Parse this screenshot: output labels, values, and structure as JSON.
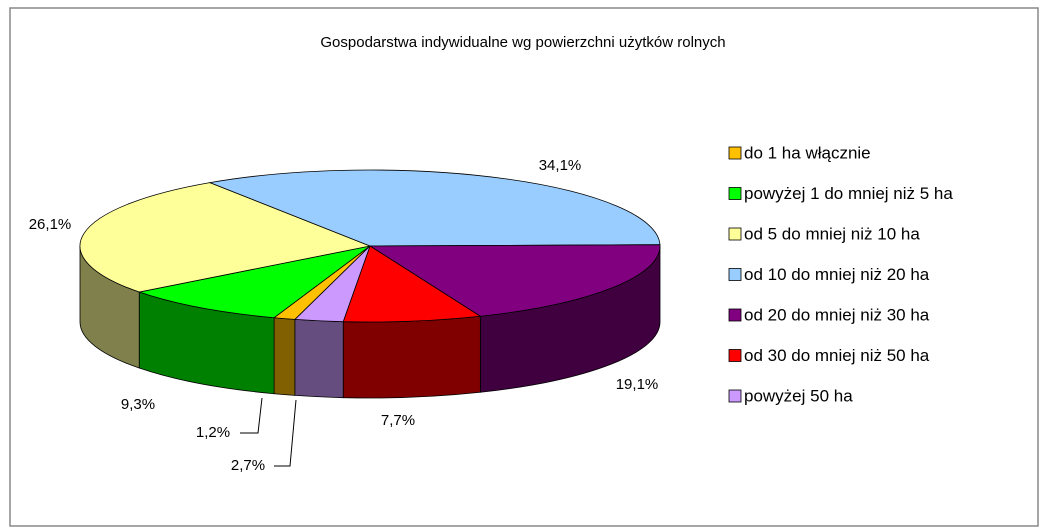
{
  "chart_data": {
    "type": "pie3d",
    "title": "Gospodarstwa indywidualne wg powierzchni użytków rolnych",
    "categories": [
      "do 1 ha włącznie",
      "powyżej 1 do mniej niż 5 ha",
      "od 5 do mniej niż 10 ha",
      "od 10 do mniej niż 20 ha",
      "od 20 do mniej niż 30 ha",
      "od 30 do mniej niż 50 ha",
      "powyżej 50 ha"
    ],
    "values": [
      1.2,
      9.3,
      26.1,
      34.1,
      19.1,
      7.7,
      2.7
    ],
    "value_labels": [
      "1,2%",
      "9,3%",
      "26,1%",
      "34,1%",
      "19,1%",
      "7,7%",
      "2,7%"
    ],
    "colors": [
      "#ffc000",
      "#00ff00",
      "#ffff99",
      "#99ccff",
      "#800080",
      "#ff0000",
      "#cc99ff"
    ],
    "legend": "right"
  }
}
